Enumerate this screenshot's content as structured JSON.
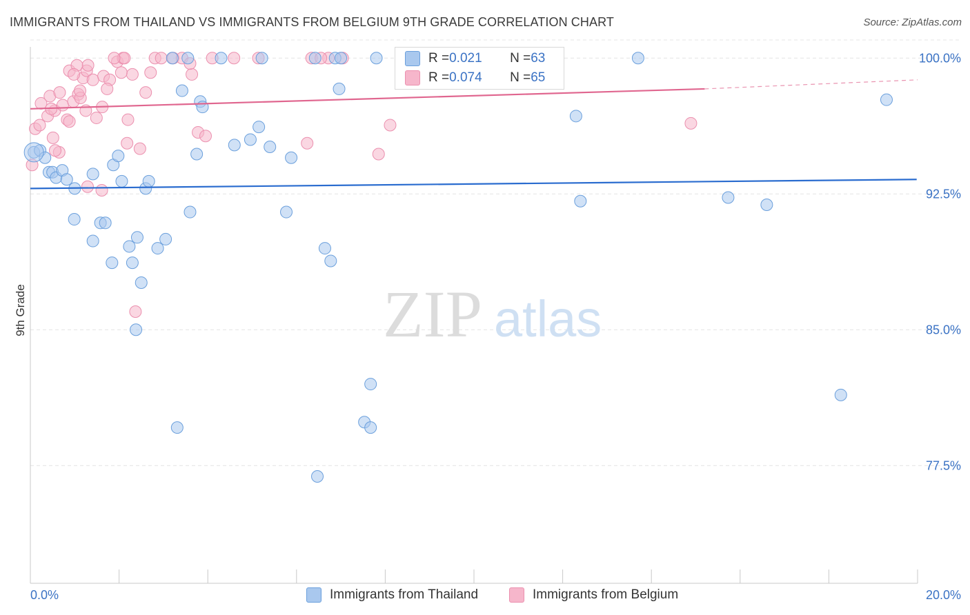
{
  "title": "IMMIGRANTS FROM THAILAND VS IMMIGRANTS FROM BELGIUM 9TH GRADE CORRELATION CHART",
  "source": "Source: ZipAtlas.com",
  "watermark": {
    "zip": "ZIP",
    "atlas": "atlas"
  },
  "legend": {
    "thailand": {
      "r_label": "R = ",
      "r_value": "0.021",
      "n_label": "N = ",
      "n_value": "63"
    },
    "belgium": {
      "r_label": "R = ",
      "r_value": "0.074",
      "n_label": "N = ",
      "n_value": "65"
    }
  },
  "colors": {
    "thailand_fill": "#a9c8ee",
    "thailand_stroke": "#6a9fdc",
    "thailand_line": "#2a6ccf",
    "belgium_fill": "#f6b6cb",
    "belgium_stroke": "#eb8fae",
    "belgium_line": "#e0668f",
    "tick_label": "#3a72c4",
    "grid": "#e4e4e4"
  },
  "chart_data": {
    "type": "scatter",
    "title": "IMMIGRANTS FROM THAILAND VS IMMIGRANTS FROM BELGIUM 9TH GRADE CORRELATION CHART",
    "xlabel": "",
    "ylabel": "9th Grade",
    "xlim": [
      0,
      20
    ],
    "ylim": [
      71.0,
      101.0
    ],
    "x_tick_labels": [
      "0.0%",
      "20.0%"
    ],
    "y_ticks": [
      77.5,
      85.0,
      92.5,
      100.0
    ],
    "y_tick_labels": [
      "77.5%",
      "85.0%",
      "92.5%",
      "100.0%"
    ],
    "grid": true,
    "legend_position": "top-center",
    "series": [
      {
        "name": "Immigrants from Thailand",
        "trend": {
          "x": [
            0.0,
            19.98
          ],
          "y": [
            92.8,
            93.3
          ]
        },
        "points": [
          [
            0.08,
            94.8
          ],
          [
            0.22,
            94.9
          ],
          [
            0.33,
            94.5
          ],
          [
            0.42,
            93.7
          ],
          [
            0.5,
            93.7
          ],
          [
            0.58,
            93.4
          ],
          [
            0.72,
            93.8
          ],
          [
            0.82,
            93.3
          ],
          [
            1.0,
            92.8
          ],
          [
            0.99,
            91.1
          ],
          [
            1.41,
            93.6
          ],
          [
            1.87,
            94.1
          ],
          [
            1.98,
            94.6
          ],
          [
            2.06,
            93.2
          ],
          [
            2.6,
            92.8
          ],
          [
            2.67,
            93.2
          ],
          [
            1.58,
            90.9
          ],
          [
            1.41,
            89.9
          ],
          [
            1.84,
            88.7
          ],
          [
            1.69,
            90.9
          ],
          [
            2.23,
            89.6
          ],
          [
            2.41,
            90.1
          ],
          [
            2.5,
            87.6
          ],
          [
            3.05,
            90.0
          ],
          [
            2.87,
            89.5
          ],
          [
            2.3,
            88.7
          ],
          [
            3.6,
            91.5
          ],
          [
            4.6,
            95.2
          ],
          [
            3.75,
            94.7
          ],
          [
            4.96,
            95.5
          ],
          [
            5.15,
            96.2
          ],
          [
            5.4,
            95.1
          ],
          [
            5.88,
            94.5
          ],
          [
            5.77,
            91.5
          ],
          [
            6.64,
            89.5
          ],
          [
            6.77,
            88.8
          ],
          [
            7.67,
            82.0
          ],
          [
            7.53,
            79.9
          ],
          [
            7.67,
            79.6
          ],
          [
            6.47,
            76.9
          ],
          [
            3.31,
            79.6
          ],
          [
            2.38,
            85.0
          ],
          [
            3.2,
            100.0
          ],
          [
            3.55,
            100.0
          ],
          [
            4.3,
            100.0
          ],
          [
            5.22,
            100.0
          ],
          [
            6.42,
            100.0
          ],
          [
            6.87,
            100.0
          ],
          [
            7.0,
            100.0
          ],
          [
            7.8,
            100.0
          ],
          [
            11.04,
            100.0
          ],
          [
            13.7,
            100.0
          ],
          [
            9.48,
            98.6
          ],
          [
            6.96,
            98.3
          ],
          [
            3.83,
            97.6
          ],
          [
            3.42,
            98.2
          ],
          [
            3.88,
            97.3
          ],
          [
            12.3,
            96.8
          ],
          [
            19.3,
            97.7
          ],
          [
            12.4,
            92.1
          ],
          [
            15.73,
            92.3
          ],
          [
            16.6,
            91.9
          ],
          [
            18.27,
            81.4
          ]
        ]
      },
      {
        "name": "Immigrants from Belgium",
        "trend": {
          "x": [
            0.0,
            15.2
          ],
          "y": [
            97.2,
            98.3
          ]
        },
        "trend_dashed": {
          "x": [
            15.2,
            20.0
          ],
          "y": [
            98.3,
            98.8
          ]
        },
        "points": [
          [
            0.04,
            94.1
          ],
          [
            0.11,
            96.1
          ],
          [
            0.21,
            96.3
          ],
          [
            0.24,
            97.5
          ],
          [
            0.39,
            96.8
          ],
          [
            0.44,
            97.9
          ],
          [
            0.51,
            95.6
          ],
          [
            0.55,
            97.1
          ],
          [
            0.65,
            94.8
          ],
          [
            0.66,
            98.1
          ],
          [
            0.73,
            97.4
          ],
          [
            0.83,
            96.6
          ],
          [
            0.88,
            96.5
          ],
          [
            0.97,
            97.6
          ],
          [
            1.08,
            98.0
          ],
          [
            1.13,
            97.8
          ],
          [
            1.19,
            98.9
          ],
          [
            1.27,
            99.3
          ],
          [
            1.3,
            99.6
          ],
          [
            1.41,
            98.8
          ],
          [
            1.49,
            96.7
          ],
          [
            1.62,
            97.3
          ],
          [
            1.65,
            99.0
          ],
          [
            1.79,
            98.8
          ],
          [
            1.96,
            99.8
          ],
          [
            2.09,
            100.0
          ],
          [
            2.12,
            100.0
          ],
          [
            1.89,
            100.0
          ],
          [
            2.3,
            99.1
          ],
          [
            2.2,
            96.6
          ],
          [
            2.18,
            95.3
          ],
          [
            2.47,
            95.0
          ],
          [
            2.6,
            98.1
          ],
          [
            2.71,
            99.2
          ],
          [
            2.81,
            100.0
          ],
          [
            2.95,
            100.0
          ],
          [
            3.22,
            100.0
          ],
          [
            3.42,
            100.0
          ],
          [
            3.64,
            99.1
          ],
          [
            3.78,
            95.9
          ],
          [
            3.95,
            95.7
          ],
          [
            4.59,
            100.0
          ],
          [
            5.14,
            100.0
          ],
          [
            6.34,
            100.0
          ],
          [
            6.72,
            100.0
          ],
          [
            7.04,
            100.0
          ],
          [
            6.24,
            95.3
          ],
          [
            7.85,
            94.7
          ],
          [
            8.11,
            96.3
          ],
          [
            1.29,
            92.9
          ],
          [
            1.61,
            92.7
          ],
          [
            2.37,
            86.0
          ],
          [
            14.89,
            96.4
          ],
          [
            0.56,
            94.9
          ],
          [
            0.88,
            99.3
          ],
          [
            1.05,
            99.6
          ],
          [
            1.25,
            97.1
          ],
          [
            0.47,
            97.2
          ],
          [
            1.12,
            98.2
          ],
          [
            2.05,
            99.2
          ],
          [
            3.6,
            99.7
          ],
          [
            4.1,
            100.0
          ],
          [
            6.55,
            100.0
          ],
          [
            0.98,
            99.1
          ],
          [
            1.73,
            98.3
          ]
        ]
      }
    ]
  },
  "bottom_legend": [
    {
      "label": "Immigrants from Thailand"
    },
    {
      "label": "Immigrants from Belgium"
    }
  ]
}
